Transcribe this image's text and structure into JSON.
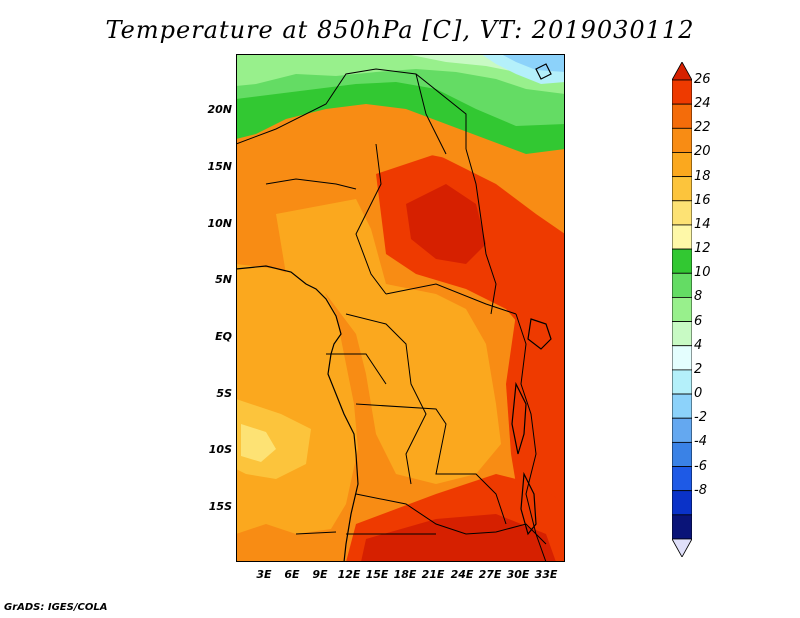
{
  "title": "Temperature at 850hPa [C], VT: 2019030112",
  "footer": "GrADS: IGES/COLA",
  "map": {
    "region": "Central Africa",
    "variable": "Temperature at 850hPa",
    "units": "C",
    "lat_range": [
      -20,
      25
    ],
    "lon_range": [
      0,
      35
    ],
    "lat_ticks": [
      "20N",
      "15N",
      "10N",
      "5N",
      "EQ",
      "5S",
      "10S",
      "15S"
    ],
    "lon_ticks": [
      "3E",
      "6E",
      "9E",
      "12E",
      "15E",
      "18E",
      "21E",
      "24E",
      "27E",
      "30E",
      "33E"
    ]
  },
  "colorbar": {
    "levels": [
      "26",
      "24",
      "22",
      "20",
      "18",
      "16",
      "14",
      "12",
      "10",
      "8",
      "6",
      "4",
      "2",
      "0",
      "-2",
      "-4",
      "-6",
      "-8"
    ],
    "colors_top_to_bottom": [
      "#d62000",
      "#ee3a00",
      "#f46c0a",
      "#f88c14",
      "#fba81e",
      "#fcc43c",
      "#fde274",
      "#fef8a8",
      "#32c832",
      "#64dc64",
      "#98f08c",
      "#c8fac4",
      "#e4fefe",
      "#b4f0fa",
      "#8cd2fa",
      "#64a8f0",
      "#3a82e6",
      "#1e5ae6",
      "#0a32c8",
      "#0a1478",
      "#e0e0fa"
    ]
  }
}
